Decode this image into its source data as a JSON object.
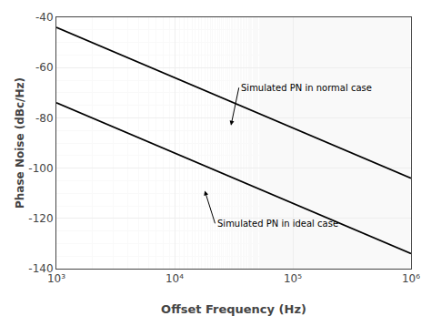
{
  "chart_data": {
    "type": "line",
    "xlabel": "Offset Frequency (Hz)",
    "ylabel": "Phase Noise (dBc/Hz)",
    "log": "x",
    "grid": true,
    "color": "#000000",
    "xlim": [
      1000.0,
      1000000.0
    ],
    "xticks": [
      {
        "value": 1000,
        "label": "10³"
      },
      {
        "value": 10000,
        "label": "10⁴"
      },
      {
        "value": 100000,
        "label": "10⁵"
      },
      {
        "value": 1000000,
        "label": "10⁶"
      }
    ],
    "ylim": [
      -140,
      -40
    ],
    "yticks": [
      -140,
      -120,
      -100,
      -80,
      -60,
      -40
    ],
    "series": [
      {
        "x": [
          1000.0,
          1000000.0
        ],
        "values": [
          -44,
          -104
        ]
      },
      {
        "x": [
          1000.0,
          1000000.0
        ],
        "values": [
          -74,
          -134
        ]
      }
    ],
    "annotations": [
      {
        "text": "Simulated PN in normal case",
        "x": 30000.0,
        "y": -83,
        "text_x": 35000.0,
        "text_y": -68
      },
      {
        "text": "Simulated PN in ideal case",
        "x": 18000.0,
        "y": -109,
        "text_x": 22000.0,
        "text_y": -122
      }
    ]
  }
}
